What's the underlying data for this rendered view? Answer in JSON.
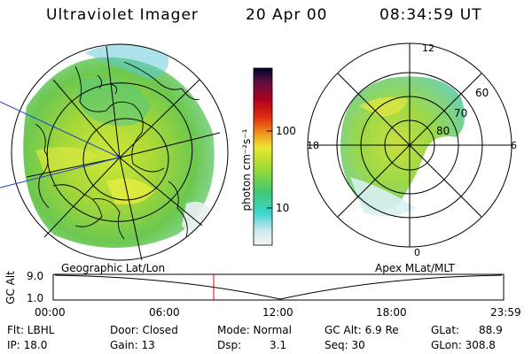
{
  "header": {
    "title": "Ultraviolet Imager",
    "date": "20 Apr 00",
    "time": "08:34:59 UT"
  },
  "colorbar": {
    "unit_label": "photon cm⁻²s⁻¹",
    "ticks": [
      "100",
      "10"
    ]
  },
  "polar": {
    "top": "12",
    "left": "18",
    "right": "6",
    "bottom": "0",
    "rings": [
      "60",
      "70",
      "80"
    ]
  },
  "map_labels": {
    "geographic": "Geographic Lat/Lon",
    "apex": "Apex MLat/MLT"
  },
  "altitude_plot": {
    "ylabel": "GC Alt",
    "yticks": [
      "9.0",
      "1.0"
    ],
    "xticks": [
      "00:00",
      "06:00",
      "12:00",
      "18:00",
      "23:59"
    ],
    "marker_time": "08:34:59"
  },
  "info": {
    "filter": "Flt: LBHL",
    "ip": "IP: 18.0",
    "door": "Door: Closed",
    "gain": "Gain: 13",
    "mode": "Mode: Normal",
    "dsp_label": "Dsp:",
    "dsp_value": "3.1",
    "gc_alt": "GC Alt: 6.9 Re",
    "seq": "Seq: 30",
    "glat": "GLat:",
    "glat_value": "88.9",
    "glon": "GLon: 308.8"
  }
}
